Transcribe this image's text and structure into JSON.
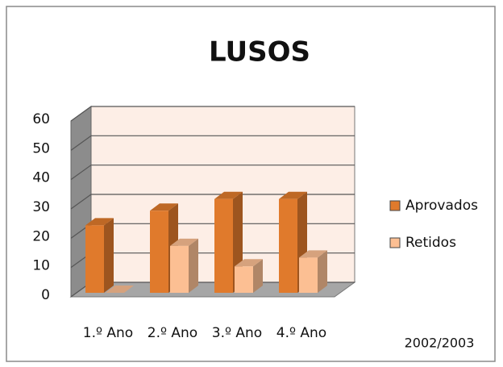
{
  "chart_data": {
    "type": "bar3d",
    "title": "LUSOS",
    "categories": [
      "1.º Ano",
      "2.º Ano",
      "3.º Ano",
      "4.º Ano"
    ],
    "series": [
      {
        "name": "Aprovados",
        "color": "#e07a2c",
        "values": [
          23,
          28,
          32,
          32
        ]
      },
      {
        "name": "Retidos",
        "color": "#fcbf93",
        "values": [
          0,
          16,
          9,
          12
        ]
      }
    ],
    "ylim": [
      0,
      60
    ],
    "yticks": [
      0,
      10,
      20,
      30,
      40,
      50,
      60
    ],
    "grid": true,
    "legend": "right",
    "annotation": "2002/2003"
  }
}
